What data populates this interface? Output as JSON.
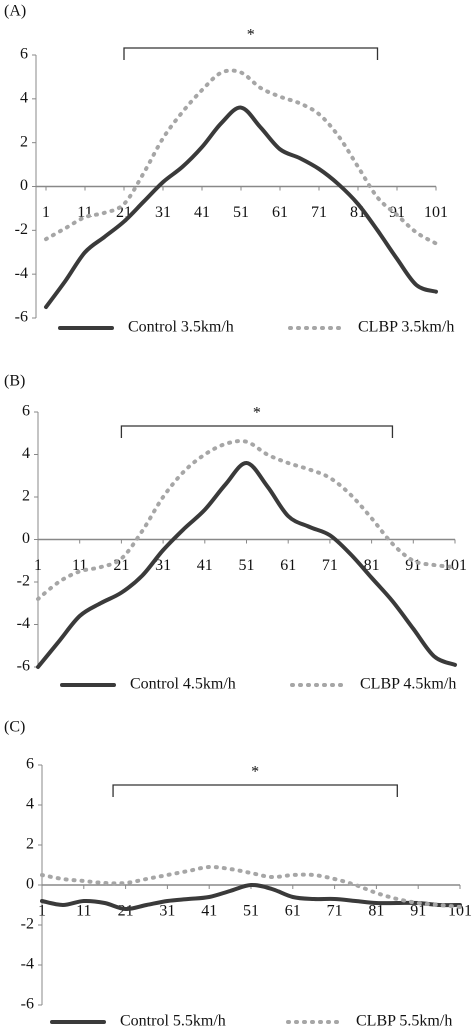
{
  "chart_data": [
    {
      "type": "line",
      "label": "(A)",
      "significance": {
        "label": "*",
        "x": [
          21,
          86
        ]
      },
      "x": [
        1,
        6,
        11,
        16,
        21,
        26,
        31,
        36,
        41,
        46,
        51,
        56,
        61,
        66,
        71,
        76,
        81,
        86,
        91,
        96,
        101
      ],
      "xlim": [
        1,
        101
      ],
      "xticks": [
        1,
        11,
        21,
        31,
        41,
        51,
        61,
        71,
        81,
        91,
        101
      ],
      "ylim": [
        -6,
        6
      ],
      "yticks": [
        -6,
        -4,
        -2,
        0,
        2,
        4,
        6
      ],
      "series": [
        {
          "name": "Control 3.5km/h",
          "color": "#3a3a3a",
          "style": "solid",
          "values": [
            -5.5,
            -4.3,
            -3.0,
            -2.3,
            -1.6,
            -0.7,
            0.2,
            0.9,
            1.8,
            2.9,
            3.6,
            2.7,
            1.7,
            1.3,
            0.8,
            0.1,
            -0.8,
            -2.0,
            -3.3,
            -4.5,
            -4.8
          ]
        },
        {
          "name": "CLBP 3.5km/h",
          "color": "#a6a6a6",
          "style": "dotted",
          "values": [
            -2.4,
            -1.9,
            -1.4,
            -1.2,
            -0.8,
            0.6,
            2.2,
            3.4,
            4.4,
            5.2,
            5.2,
            4.5,
            4.1,
            3.8,
            3.3,
            2.3,
            0.9,
            -0.5,
            -1.3,
            -2.1,
            -2.6
          ]
        }
      ]
    },
    {
      "type": "line",
      "label": "(B)",
      "significance": {
        "label": "*",
        "x": [
          21,
          86
        ]
      },
      "x": [
        1,
        6,
        11,
        16,
        21,
        26,
        31,
        36,
        41,
        46,
        51,
        56,
        61,
        66,
        71,
        76,
        81,
        86,
        91,
        96,
        101
      ],
      "xlim": [
        1,
        101
      ],
      "xticks": [
        1,
        11,
        21,
        31,
        41,
        51,
        61,
        71,
        81,
        91,
        101
      ],
      "ylim": [
        -6,
        6
      ],
      "yticks": [
        -6,
        -4,
        -2,
        0,
        2,
        4,
        6
      ],
      "series": [
        {
          "name": "Control 4.5km/h",
          "color": "#3a3a3a",
          "style": "solid",
          "values": [
            -6.0,
            -4.8,
            -3.6,
            -3.0,
            -2.5,
            -1.7,
            -0.5,
            0.5,
            1.4,
            2.6,
            3.6,
            2.5,
            1.1,
            0.6,
            0.2,
            -0.7,
            -1.8,
            -2.9,
            -4.2,
            -5.5,
            -5.9
          ]
        },
        {
          "name": "CLBP 4.5km/h",
          "color": "#a6a6a6",
          "style": "dotted",
          "values": [
            -2.8,
            -2.0,
            -1.5,
            -1.3,
            -0.9,
            0.4,
            2.0,
            3.2,
            4.0,
            4.5,
            4.6,
            4.0,
            3.6,
            3.3,
            2.9,
            2.1,
            1.0,
            -0.2,
            -1.0,
            -1.2,
            -1.3
          ]
        }
      ]
    },
    {
      "type": "line",
      "label": "(C)",
      "significance": {
        "label": "*",
        "x": [
          18,
          86
        ]
      },
      "x": [
        1,
        6,
        11,
        16,
        21,
        26,
        31,
        36,
        41,
        46,
        51,
        56,
        61,
        66,
        71,
        76,
        81,
        86,
        91,
        96,
        101
      ],
      "xlim": [
        1,
        101
      ],
      "xticks": [
        1,
        11,
        21,
        31,
        41,
        51,
        61,
        71,
        81,
        91,
        101
      ],
      "ylim": [
        -6,
        6
      ],
      "yticks": [
        -6,
        -4,
        -2,
        0,
        2,
        4,
        6
      ],
      "series": [
        {
          "name": "Control 5.5km/h",
          "color": "#3a3a3a",
          "style": "solid",
          "values": [
            -0.8,
            -1.0,
            -0.8,
            -0.9,
            -1.2,
            -1.0,
            -0.8,
            -0.7,
            -0.6,
            -0.3,
            0.0,
            -0.2,
            -0.6,
            -0.7,
            -0.7,
            -0.8,
            -0.9,
            -0.9,
            -0.9,
            -1.0,
            -1.0
          ]
        },
        {
          "name": "CLBP 5.5km/h",
          "color": "#a6a6a6",
          "style": "dotted",
          "values": [
            0.5,
            0.3,
            0.2,
            0.1,
            0.1,
            0.3,
            0.5,
            0.7,
            0.9,
            0.8,
            0.6,
            0.4,
            0.5,
            0.5,
            0.3,
            0.0,
            -0.4,
            -0.7,
            -0.9,
            -1.0,
            -1.1
          ]
        }
      ]
    }
  ]
}
